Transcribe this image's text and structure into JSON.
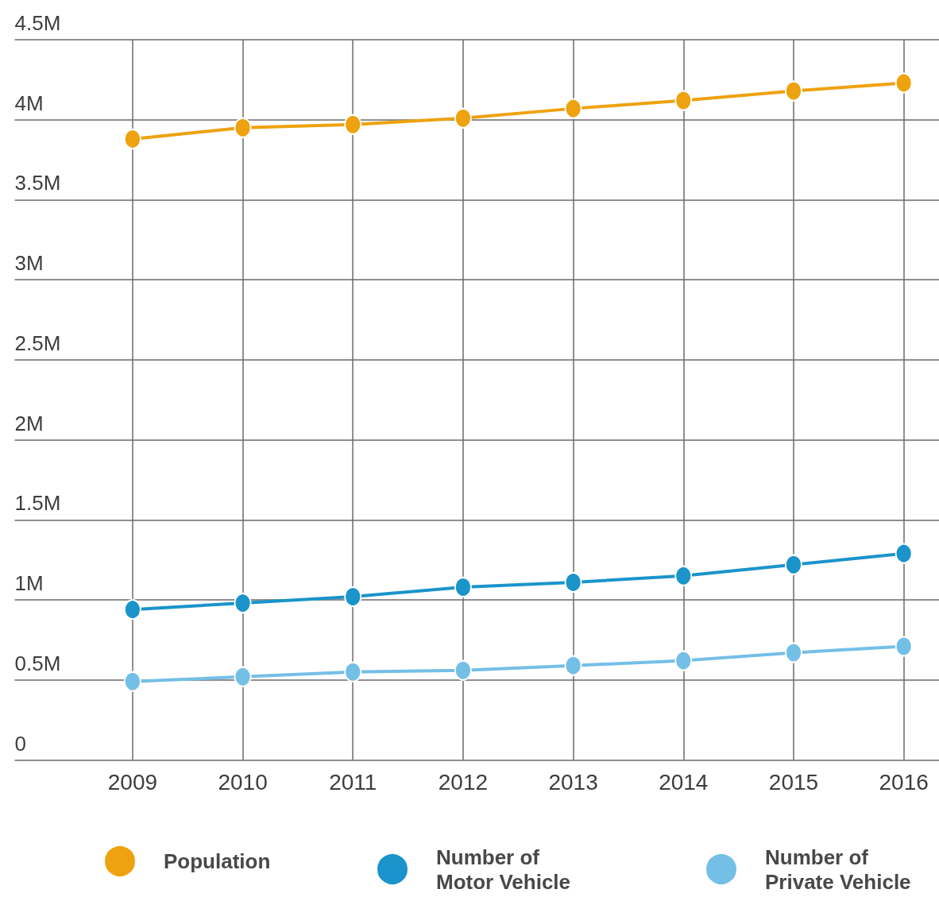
{
  "chart_data": {
    "type": "line",
    "x": [
      2009,
      2010,
      2011,
      2012,
      2013,
      2014,
      2015,
      2016
    ],
    "xlim": [
      2007.93,
      2016.32
    ],
    "xticks": [
      2009,
      2010,
      2011,
      2012,
      2013,
      2014,
      2015,
      2016
    ],
    "ylim": [
      0,
      4500000
    ],
    "yticks": [
      0,
      {
        "value": 500000,
        "label": "0.5M"
      },
      {
        "value": 1000000,
        "label": "1M"
      },
      {
        "value": 1500000,
        "label": "1.5M"
      },
      {
        "value": 2000000,
        "label": "2M"
      },
      {
        "value": 2500000,
        "label": "2.5M"
      },
      {
        "value": 3000000,
        "label": "3M"
      },
      {
        "value": 3500000,
        "label": "3.5M"
      },
      {
        "value": 4000000,
        "label": "4M"
      },
      {
        "value": 4500000,
        "label": "4.5M"
      }
    ],
    "series": [
      {
        "name": "Population",
        "color": "#eea20f",
        "values": [
          3880000,
          3950000,
          3970000,
          4010000,
          4070000,
          4120000,
          4180000,
          4230000
        ]
      },
      {
        "name": "Number of Motor Vehicle",
        "color": "#1a94cb",
        "values": [
          940000,
          980000,
          1020000,
          1080000,
          1110000,
          1150000,
          1220000,
          1290000
        ]
      },
      {
        "name": "Number of Private Vehicle",
        "color": "#74bfe6",
        "values": [
          490000,
          520000,
          550000,
          560000,
          590000,
          620000,
          670000,
          710000
        ]
      }
    ],
    "grid": true,
    "legend": "bottom",
    "marker": "circle",
    "line_style": "solid"
  }
}
